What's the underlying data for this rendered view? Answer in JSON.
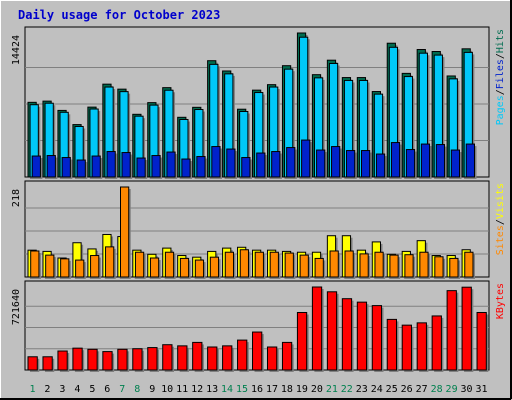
{
  "title": "Daily usage for October 2023",
  "colors": {
    "title": "#0000cc",
    "frame_bg": "#c0c0c0",
    "plot_bg": "#c0c0c0",
    "gridline": "#808080",
    "hits": "#006c50",
    "files": "#00c8f8",
    "pages": "#0022cc",
    "visits": "#ffff00",
    "sites": "#ff8800",
    "kbytes": "#ff0000",
    "day_weekday": "#000000",
    "day_weekend": "#00804f"
  },
  "chart_data": [
    {
      "type": "bar",
      "panel": "hits",
      "categories": [
        "1",
        "2",
        "3",
        "4",
        "5",
        "6",
        "7",
        "8",
        "9",
        "10",
        "11",
        "12",
        "13",
        "14",
        "15",
        "16",
        "17",
        "18",
        "19",
        "20",
        "21",
        "22",
        "23",
        "24",
        "25",
        "26",
        "27",
        "28",
        "29",
        "30",
        "31"
      ],
      "y_tick_label": "14424",
      "ymax": 14424,
      "grid": true,
      "series": [
        {
          "name": "Hits",
          "color": "hits",
          "values": [
            7480,
            7600,
            6670,
            5250,
            7000,
            9300,
            8800,
            6280,
            7450,
            8950,
            5980,
            6980,
            11650,
            10620,
            6790,
            8700,
            9250,
            11150,
            14424,
            10250,
            11700,
            9960,
            9960,
            8560,
            13400,
            10380,
            12770,
            12570,
            10120,
            12840,
            null
          ]
        },
        {
          "name": "Files",
          "color": "files",
          "values": [
            7240,
            7390,
            6480,
            5060,
            6810,
            9010,
            8550,
            6090,
            7200,
            8690,
            5760,
            6760,
            11280,
            10330,
            6560,
            8460,
            9010,
            10800,
            14000,
            9930,
            11370,
            9670,
            9670,
            8300,
            12990,
            10060,
            12400,
            12210,
            9830,
            12480,
            null
          ]
        },
        {
          "name": "Pages",
          "color": "pages",
          "values": [
            2100,
            2150,
            1950,
            1700,
            2100,
            2550,
            2450,
            1900,
            2150,
            2500,
            1800,
            2050,
            3050,
            2800,
            1950,
            2400,
            2550,
            2950,
            3700,
            2700,
            3050,
            2650,
            2650,
            2300,
            3450,
            2750,
            3300,
            3250,
            2700,
            3300,
            null
          ]
        }
      ]
    },
    {
      "type": "bar",
      "panel": "visits",
      "categories": [
        "1",
        "2",
        "3",
        "4",
        "5",
        "6",
        "7",
        "8",
        "9",
        "10",
        "11",
        "12",
        "13",
        "14",
        "15",
        "16",
        "17",
        "18",
        "19",
        "20",
        "21",
        "22",
        "23",
        "24",
        "25",
        "26",
        "27",
        "28",
        "29",
        "30",
        "31"
      ],
      "y_tick_label": "218",
      "ymax": 218,
      "grid": true,
      "series": [
        {
          "name": "Visits",
          "color": "visits",
          "values": [
            65,
            62,
            46,
            83,
            68,
            103,
            98,
            65,
            55,
            70,
            52,
            48,
            62,
            70,
            72,
            65,
            65,
            62,
            60,
            60,
            100,
            100,
            65,
            85,
            55,
            62,
            88,
            52,
            52,
            66,
            null
          ]
        },
        {
          "name": "Sites",
          "color": "sites",
          "values": [
            63,
            53,
            44,
            41,
            52,
            73,
            218,
            60,
            46,
            60,
            45,
            41,
            48,
            60,
            66,
            60,
            60,
            58,
            53,
            45,
            63,
            63,
            56,
            60,
            53,
            54,
            60,
            49,
            45,
            60,
            null
          ]
        }
      ]
    },
    {
      "type": "bar",
      "panel": "kbytes",
      "categories": [
        "1",
        "2",
        "3",
        "4",
        "5",
        "6",
        "7",
        "8",
        "9",
        "10",
        "11",
        "12",
        "13",
        "14",
        "15",
        "16",
        "17",
        "18",
        "19",
        "20",
        "21",
        "22",
        "23",
        "24",
        "25",
        "26",
        "27",
        "28",
        "29",
        "30",
        "31"
      ],
      "y_tick_label": "721640",
      "ymax": 721640,
      "grid": true,
      "series": [
        {
          "name": "KBytes",
          "color": "kbytes",
          "values": [
            115000,
            115000,
            165000,
            190000,
            180000,
            160000,
            180000,
            185000,
            195000,
            220000,
            210000,
            240000,
            200000,
            210000,
            260000,
            330000,
            200000,
            240000,
            500000,
            721640,
            680000,
            620000,
            590000,
            560000,
            440000,
            390000,
            410000,
            470000,
            690000,
            720000,
            500000
          ]
        }
      ]
    }
  ],
  "day_labels": {
    "days": [
      "1",
      "2",
      "3",
      "4",
      "5",
      "6",
      "7",
      "8",
      "9",
      "10",
      "11",
      "12",
      "13",
      "14",
      "15",
      "16",
      "17",
      "18",
      "19",
      "20",
      "21",
      "22",
      "23",
      "24",
      "25",
      "26",
      "27",
      "28",
      "29",
      "30",
      "31"
    ],
    "weekend_days": [
      "1",
      "7",
      "8",
      "14",
      "15",
      "21",
      "22",
      "28",
      "29"
    ]
  },
  "legends": {
    "hits_panel": [
      {
        "text": "Pages",
        "color": "files"
      },
      {
        "text": "/",
        "color": "day_weekday"
      },
      {
        "text": "Files",
        "color": "pages"
      },
      {
        "text": "/",
        "color": "day_weekday"
      },
      {
        "text": "Hits",
        "color": "hits"
      }
    ],
    "visits_panel": [
      {
        "text": "Sites",
        "color": "sites"
      },
      {
        "text": "/",
        "color": "day_weekday"
      },
      {
        "text": "Visits",
        "color": "visits"
      }
    ],
    "kbytes_panel": [
      {
        "text": "KBytes",
        "color": "kbytes"
      }
    ]
  }
}
